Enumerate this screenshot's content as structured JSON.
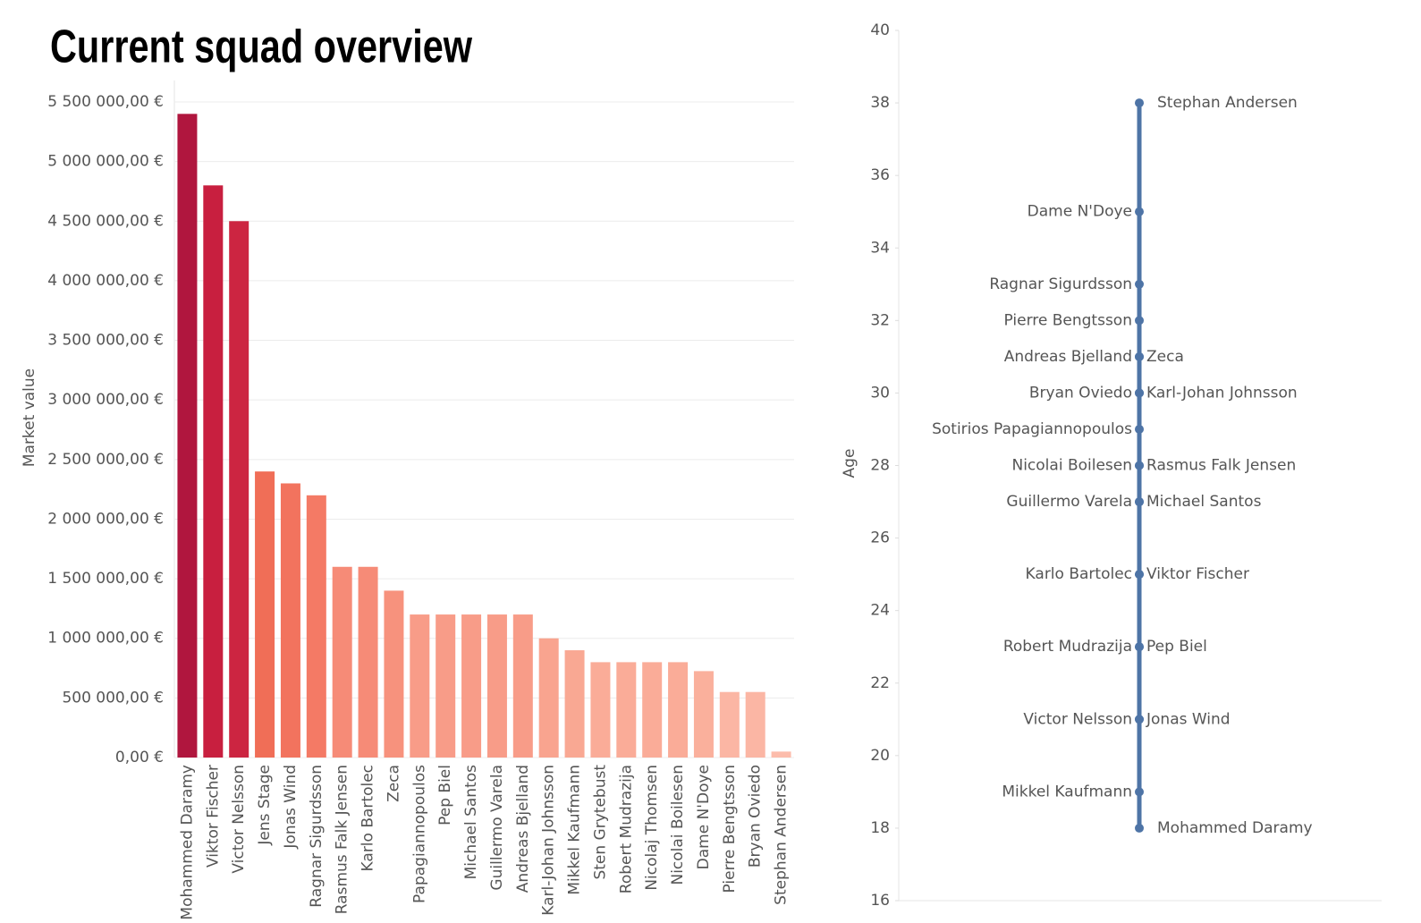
{
  "title": "Current squad overview",
  "chart_data": [
    {
      "type": "bar",
      "y_label": "Market value",
      "categories": [
        "Mohammed Daramy",
        "Viktor Fischer",
        "Victor Nelsson",
        "Jens Stage",
        "Jonas Wind",
        "Ragnar Sigurdsson",
        "Rasmus Falk Jensen",
        "Karlo Bartolec",
        "Zeca",
        "Papagiannopoulos",
        "Pep Biel",
        "Michael Santos",
        "Guillermo Varela",
        "Andreas Bjelland",
        "Karl-Johan Johnsson",
        "Mikkel Kaufmann",
        "Sten Grytebust",
        "Robert Mudrazija",
        "Nicolaj Thomsen",
        "Nicolai Boilesen",
        "Dame N'Doye",
        "Pierre Bengtsson",
        "Bryan Oviedo",
        "Stephan Andersen"
      ],
      "values": [
        5400000,
        4800000,
        4500000,
        2400000,
        2300000,
        2200000,
        1600000,
        1600000,
        1400000,
        1200000,
        1200000,
        1200000,
        1200000,
        1200000,
        1000000,
        900000,
        800000,
        800000,
        800000,
        800000,
        725000,
        550000,
        550000,
        50000
      ],
      "colors": [
        "#b0163e",
        "#c81f3f",
        "#cc2541",
        "#f06e57",
        "#f2735e",
        "#f47a65",
        "#f68b77",
        "#f68b77",
        "#f7927d",
        "#f89c88",
        "#f89c88",
        "#f89c88",
        "#f89c88",
        "#f89c88",
        "#f9a48f",
        "#f9a893",
        "#faac98",
        "#faac98",
        "#faac98",
        "#faac98",
        "#fab09c",
        "#fbb6a4",
        "#fbb6a4",
        "#fcbcab"
      ],
      "ylim": [
        0,
        5500000
      ],
      "yticks": [
        {
          "value": 0,
          "label": "0,00 €"
        },
        {
          "value": 500000,
          "label": "500 000,00 €"
        },
        {
          "value": 1000000,
          "label": "1 000 000,00 €"
        },
        {
          "value": 1500000,
          "label": "1 500 000,00 €"
        },
        {
          "value": 2000000,
          "label": "2 000 000,00 €"
        },
        {
          "value": 2500000,
          "label": "2 500 000,00 €"
        },
        {
          "value": 3000000,
          "label": "3 000 000,00 €"
        },
        {
          "value": 3500000,
          "label": "3 500 000,00 €"
        },
        {
          "value": 4000000,
          "label": "4 000 000,00 €"
        },
        {
          "value": 4500000,
          "label": "4 500 000,00 €"
        },
        {
          "value": 5000000,
          "label": "5 000 000,00 €"
        },
        {
          "value": 5500000,
          "label": "5 500 000,00 €"
        }
      ],
      "grid": true
    },
    {
      "type": "dotplot",
      "y_label": "Age",
      "names": [
        "Stephan Andersen",
        "Dame N'Doye",
        "Ragnar Sigurdsson",
        "Pierre Bengtsson",
        "Andreas Bjelland",
        "Zeca",
        "Bryan Oviedo",
        "Karl-Johan Johnsson",
        "Sotirios Papagiannopoulos",
        "Nicolai Boilesen",
        "Rasmus Falk Jensen",
        "Guillermo Varela",
        "Michael Santos",
        "Karlo Bartolec",
        "Viktor Fischer",
        "Robert Mudrazija",
        "Pep Biel",
        "Victor Nelsson",
        "Jonas Wind",
        "Mikkel Kaufmann",
        "Mohammed Daramy"
      ],
      "values": [
        38,
        35,
        33,
        32,
        31,
        31,
        30,
        30,
        29,
        28,
        28,
        27,
        27,
        25,
        25,
        23,
        23,
        21,
        21,
        19,
        18
      ],
      "label_sides": [
        "right",
        "left",
        "left",
        "left",
        "left",
        "right",
        "left",
        "right",
        "left",
        "left",
        "right",
        "left",
        "right",
        "left",
        "right",
        "left",
        "right",
        "left",
        "right",
        "left",
        "right"
      ],
      "color": "#4e74a6",
      "ylim": [
        16,
        40
      ],
      "yticks": [
        16,
        18,
        20,
        22,
        24,
        26,
        28,
        30,
        32,
        34,
        36,
        38,
        40
      ]
    }
  ]
}
